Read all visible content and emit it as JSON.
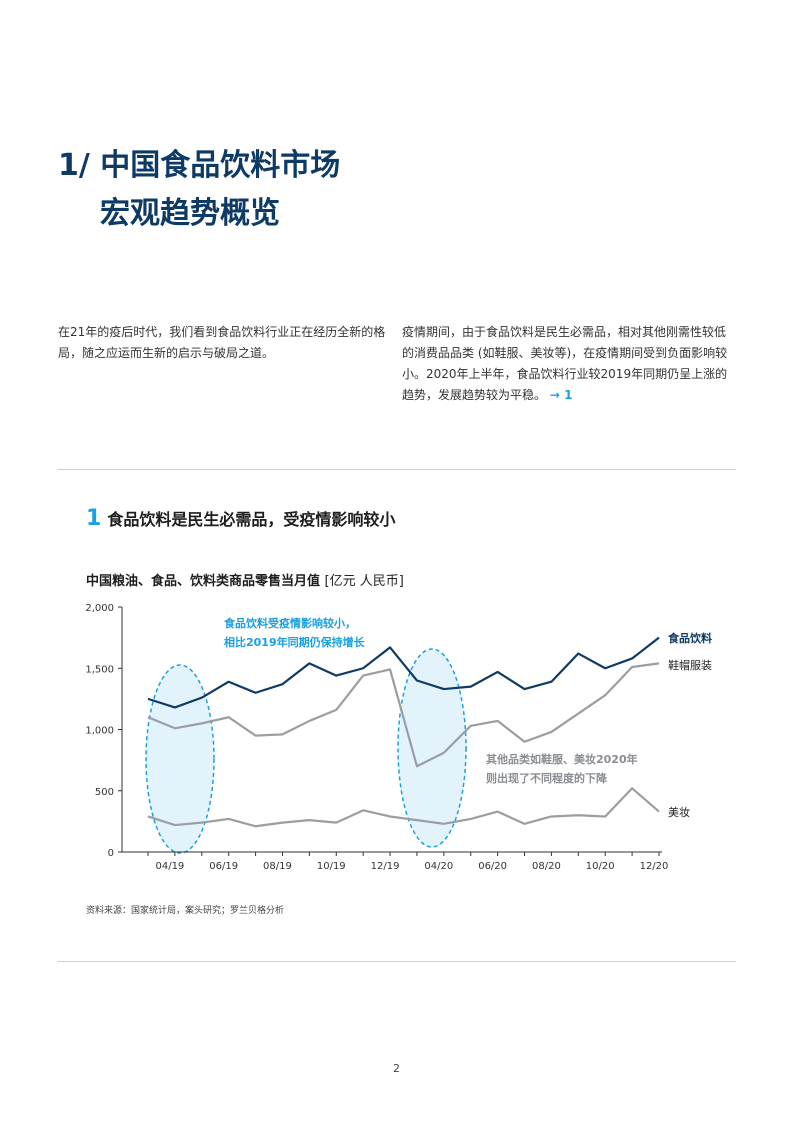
{
  "heading": {
    "line1": "1/ 中国食品饮料市场",
    "line2": "宏观趋势概览"
  },
  "intro_left": "在21年的疫后时代，我们看到食品饮料行业正在经历全新的格局，随之应运而生新的启示与破局之道。",
  "intro_right": "疫情期间，由于食品饮料是民生必需品，相对其他刚需性较低的消费品品类 (如鞋服、美妆等)，在疫情期间受到负面影响较小。2020年上半年，食品饮料行业较2019年同期仍呈上涨的趋势，发展趋势较为平稳。",
  "intro_ref": "→ 1",
  "section": {
    "number": "1",
    "title": "食品饮料是民生必需品，受疫情影响较小"
  },
  "chart_title": "中国粮油、食品、饮料类商品零售当月值",
  "chart_unit": "[亿元 人民币]",
  "source": "资料来源：国家统计局，案头研究；罗兰贝格分析",
  "page_number": "2",
  "colors": {
    "food": "#0e3a66",
    "apparel": "#9a9ea3",
    "cosmetics": "#9a9ea3",
    "highlight": "#1aa0e0"
  },
  "chart_data": {
    "type": "line",
    "ylim": [
      0,
      2000
    ],
    "yticks": [
      "0",
      "500",
      "1,000",
      "1,500",
      "2,000"
    ],
    "xtick_labels": [
      "04/19",
      "06/19",
      "08/19",
      "10/19",
      "12/19",
      "04/20",
      "06/20",
      "08/20",
      "10/20",
      "12/20"
    ],
    "x": [
      "03/19",
      "04/19",
      "05/19",
      "06/19",
      "07/19",
      "08/19",
      "09/19",
      "10/19",
      "11/19",
      "12/19",
      "03/20",
      "04/20",
      "05/20",
      "06/20",
      "07/20",
      "08/20",
      "09/20",
      "10/20",
      "11/20",
      "12/20"
    ],
    "series": [
      {
        "name": "食品饮料",
        "values": [
          1250,
          1180,
          1260,
          1390,
          1300,
          1370,
          1540,
          1440,
          1500,
          1670,
          1400,
          1330,
          1350,
          1470,
          1330,
          1390,
          1620,
          1500,
          1580,
          1750
        ]
      },
      {
        "name": "鞋帽服装",
        "values": [
          1100,
          1010,
          1050,
          1100,
          950,
          960,
          1070,
          1160,
          1440,
          1490,
          700,
          810,
          1030,
          1070,
          900,
          980,
          1130,
          1280,
          1510,
          1540
        ]
      },
      {
        "name": "美妆",
        "values": [
          290,
          220,
          240,
          270,
          210,
          240,
          260,
          240,
          340,
          290,
          260,
          230,
          270,
          330,
          230,
          290,
          300,
          290,
          520,
          330
        ]
      }
    ],
    "annotations": [
      {
        "text_line1": "食品饮料受疫情影响较小，",
        "text_line2": "相比2019年同期仍保持增长"
      },
      {
        "text_line1": "其他品类如鞋服、美妆2020年",
        "text_line2": "则出现了不同程度的下降"
      }
    ]
  }
}
